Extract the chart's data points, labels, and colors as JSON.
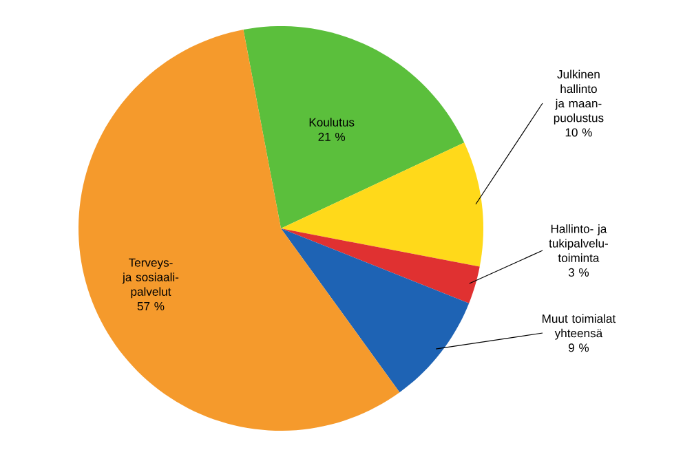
{
  "chart_data": {
    "type": "pie",
    "categories": [
      "Koulutus",
      "Julkinen hallinto ja maan-puolustus",
      "Hallinto- ja tukipalvelu-toiminta",
      "Muut toimialat yhteensä",
      "Terveys- ja sosiaali-palvelut"
    ],
    "values": [
      21,
      10,
      3,
      9,
      57
    ],
    "value_labels": [
      "21 %",
      "10 %",
      "3 %",
      "9 %",
      "57 %"
    ],
    "colors": [
      "#5bbf3c",
      "#ffd91a",
      "#e03131",
      "#1e63b4",
      "#f59a2c"
    ]
  }
}
